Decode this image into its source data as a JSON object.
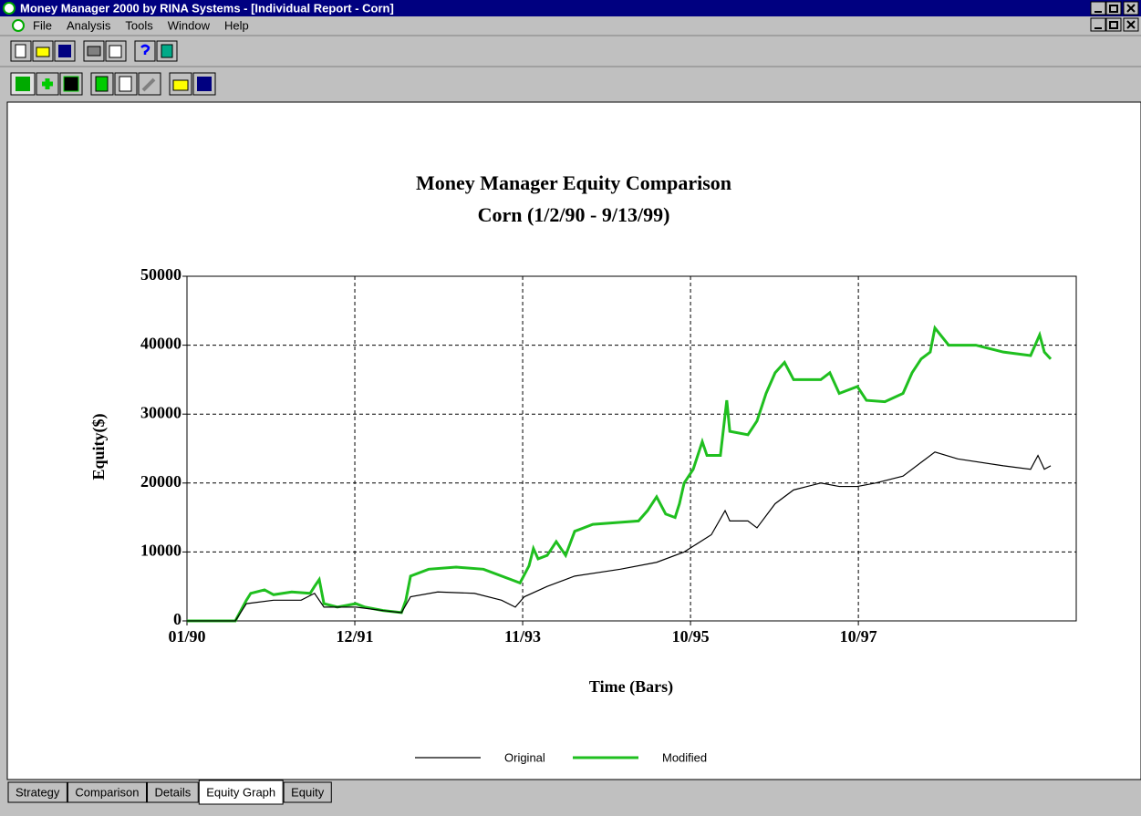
{
  "window": {
    "title": "Money Manager 2000 by RINA Systems - [Individual Report - Corn]"
  },
  "menu": [
    "File",
    "Analysis",
    "Tools",
    "Window",
    "Help"
  ],
  "tabs": [
    "Strategy",
    "Comparison",
    "Details",
    "Equity Graph",
    "Equity"
  ],
  "chart_data": {
    "type": "line",
    "title": "Money Manager Equity Comparison",
    "subtitle": "Corn (1/2/90 - 9/13/99)",
    "x_label": "Time (Bars)",
    "y_label": "Equity($)",
    "xlim": [
      0,
      2649
    ],
    "ylim": [
      0,
      50000
    ],
    "xticks": [
      {
        "value": 0,
        "label": "01/90"
      },
      {
        "value": 500,
        "label": "12/91"
      },
      {
        "value": 1000,
        "label": "11/93"
      },
      {
        "value": 1500,
        "label": "10/95"
      },
      {
        "value": 2000,
        "label": "10/97"
      }
    ],
    "yticks": [
      0,
      10000,
      20000,
      30000,
      40000,
      50000
    ],
    "grid": true,
    "series": [
      {
        "name": "Original",
        "color": "#000000",
        "x": [
          0,
          144,
          177,
          258,
          340,
          380,
          408,
          503,
          584,
          639,
          666,
          747,
          856,
          937,
          978,
          1005,
          1073,
          1155,
          1291,
          1399,
          1481,
          1562,
          1603,
          1617,
          1671,
          1698,
          1752,
          1807,
          1888,
          1943,
          1997,
          2051,
          2133,
          2187,
          2228,
          2296,
          2432,
          2513,
          2535,
          2554,
          2573
        ],
        "values": [
          0,
          0,
          2500,
          3000,
          3000,
          4000,
          2000,
          2000,
          1500,
          1200,
          3500,
          4200,
          4000,
          3000,
          2000,
          3500,
          5000,
          6500,
          7500,
          8500,
          10000,
          12500,
          16000,
          14500,
          14500,
          13500,
          17000,
          19000,
          20000,
          19500,
          19500,
          20000,
          21000,
          23000,
          24500,
          23500,
          22500,
          22000,
          24000,
          22000,
          22500
        ]
      },
      {
        "name": "Modified",
        "color": "#1fbf1f",
        "x": [
          0,
          122,
          144,
          177,
          190,
          231,
          258,
          312,
          367,
          380,
          394,
          408,
          448,
          503,
          530,
          584,
          639,
          652,
          666,
          720,
          802,
          883,
          965,
          992,
          1019,
          1032,
          1046,
          1073,
          1100,
          1128,
          1155,
          1209,
          1291,
          1345,
          1372,
          1399,
          1426,
          1454,
          1467,
          1481,
          1508,
          1535,
          1549,
          1589,
          1608,
          1617,
          1671,
          1698,
          1725,
          1752,
          1780,
          1807,
          1888,
          1915,
          1943,
          1997,
          2024,
          2079,
          2133,
          2160,
          2187,
          2214,
          2228,
          2269,
          2350,
          2432,
          2513,
          2540,
          2554,
          2573
        ],
        "values": [
          0,
          0,
          0,
          3000,
          4000,
          4500,
          3800,
          4200,
          4000,
          5000,
          6000,
          2500,
          2000,
          2500,
          2000,
          1500,
          1200,
          3000,
          6500,
          7500,
          7800,
          7500,
          6000,
          5500,
          8000,
          10500,
          9000,
          9500,
          11500,
          9500,
          13000,
          14000,
          14300,
          14500,
          16000,
          18000,
          15500,
          15000,
          17000,
          20000,
          22000,
          26000,
          24000,
          24000,
          32000,
          27500,
          27000,
          29000,
          33000,
          36000,
          37500,
          35000,
          35000,
          36000,
          33000,
          34000,
          32000,
          31800,
          33000,
          36000,
          38000,
          39000,
          42500,
          40000,
          40000,
          39000,
          38500,
          41500,
          39000,
          38000
        ]
      }
    ]
  }
}
